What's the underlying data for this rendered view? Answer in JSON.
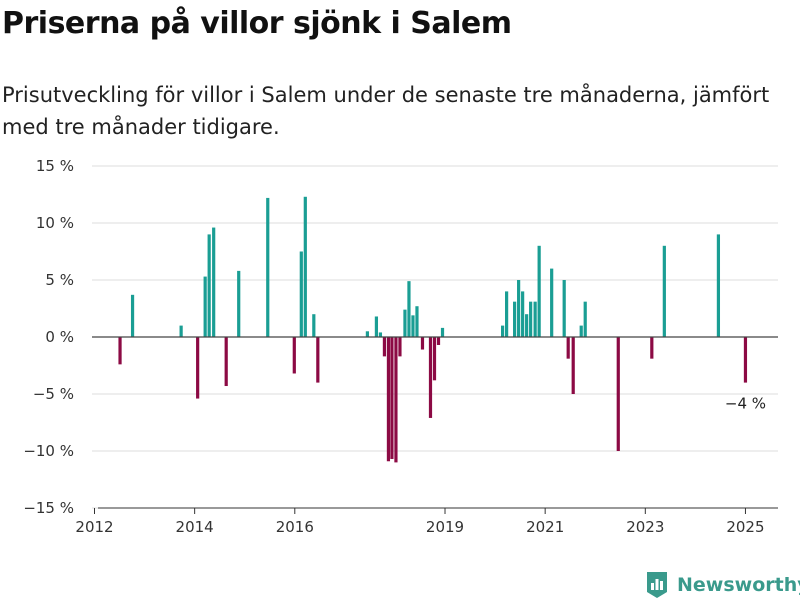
{
  "title": "Priserna på villor sjönk i Salem",
  "subtitle": "Prisutveckling för villor i Salem under de senaste tre månaderna, jämfört med tre månader tidigare.",
  "brand": "Newsworthy",
  "colors": {
    "positive": "#1a9e94",
    "negative": "#8c0a44",
    "brand": "#3a9a8c"
  },
  "chart_data": {
    "type": "bar",
    "y_unit": "%",
    "ylim": [
      -15,
      15
    ],
    "y_ticks": [
      {
        "value": 15,
        "label": "15 %"
      },
      {
        "value": 10,
        "label": "10 %"
      },
      {
        "value": 5,
        "label": "5 %"
      },
      {
        "value": 0,
        "label": "0 %"
      },
      {
        "value": -5,
        "label": "−5 %"
      },
      {
        "value": -10,
        "label": "−10 %"
      },
      {
        "value": -15,
        "label": "−15 %"
      }
    ],
    "xlim": [
      2011.95,
      2025.65
    ],
    "x_ticks": [
      {
        "value": 2012,
        "label": "2012"
      },
      {
        "value": 2014,
        "label": "2014"
      },
      {
        "value": 2016,
        "label": "2016"
      },
      {
        "value": 2019,
        "label": "2019"
      },
      {
        "value": 2021,
        "label": "2021"
      },
      {
        "value": 2023,
        "label": "2023"
      },
      {
        "value": 2025,
        "label": "2025"
      }
    ],
    "grid": true,
    "annotation": {
      "label": "−4 %",
      "x": 2025.0,
      "y": -4.0
    },
    "points": [
      {
        "x": 2012.51,
        "y": -2.4
      },
      {
        "x": 2012.76,
        "y": 3.7
      },
      {
        "x": 2013.73,
        "y": 1.0
      },
      {
        "x": 2014.06,
        "y": -5.4
      },
      {
        "x": 2014.21,
        "y": 5.3
      },
      {
        "x": 2014.29,
        "y": 9.0
      },
      {
        "x": 2014.38,
        "y": 9.6
      },
      {
        "x": 2014.63,
        "y": -4.3
      },
      {
        "x": 2014.88,
        "y": 5.8
      },
      {
        "x": 2015.46,
        "y": 12.2
      },
      {
        "x": 2015.99,
        "y": -3.2
      },
      {
        "x": 2016.13,
        "y": 7.5
      },
      {
        "x": 2016.21,
        "y": 12.3
      },
      {
        "x": 2016.38,
        "y": 2.0
      },
      {
        "x": 2016.46,
        "y": -4.0
      },
      {
        "x": 2017.45,
        "y": 0.5
      },
      {
        "x": 2017.63,
        "y": 1.8
      },
      {
        "x": 2017.71,
        "y": 0.4
      },
      {
        "x": 2017.79,
        "y": -1.7
      },
      {
        "x": 2017.87,
        "y": -10.9
      },
      {
        "x": 2017.94,
        "y": -10.7
      },
      {
        "x": 2018.02,
        "y": -11.0
      },
      {
        "x": 2018.1,
        "y": -1.7
      },
      {
        "x": 2018.2,
        "y": 2.4
      },
      {
        "x": 2018.28,
        "y": 4.9
      },
      {
        "x": 2018.36,
        "y": 1.9
      },
      {
        "x": 2018.44,
        "y": 2.7
      },
      {
        "x": 2018.55,
        "y": -1.1
      },
      {
        "x": 2018.71,
        "y": -7.1
      },
      {
        "x": 2018.79,
        "y": -3.8
      },
      {
        "x": 2018.87,
        "y": -0.7
      },
      {
        "x": 2018.95,
        "y": 0.8
      },
      {
        "x": 2020.15,
        "y": 1.0
      },
      {
        "x": 2020.23,
        "y": 4.0
      },
      {
        "x": 2020.39,
        "y": 3.1
      },
      {
        "x": 2020.47,
        "y": 5.0
      },
      {
        "x": 2020.55,
        "y": 4.0
      },
      {
        "x": 2020.63,
        "y": 2.0
      },
      {
        "x": 2020.71,
        "y": 3.1
      },
      {
        "x": 2020.8,
        "y": 3.1
      },
      {
        "x": 2020.88,
        "y": 8.0
      },
      {
        "x": 2021.13,
        "y": 6.0
      },
      {
        "x": 2021.38,
        "y": 5.0
      },
      {
        "x": 2021.46,
        "y": -1.9
      },
      {
        "x": 2021.56,
        "y": -5.0
      },
      {
        "x": 2021.72,
        "y": 1.0
      },
      {
        "x": 2021.8,
        "y": 3.1
      },
      {
        "x": 2022.46,
        "y": -10.0
      },
      {
        "x": 2023.13,
        "y": -1.9
      },
      {
        "x": 2023.38,
        "y": 8.0
      },
      {
        "x": 2024.46,
        "y": 9.0
      },
      {
        "x": 2025.0,
        "y": -4.0
      }
    ]
  }
}
